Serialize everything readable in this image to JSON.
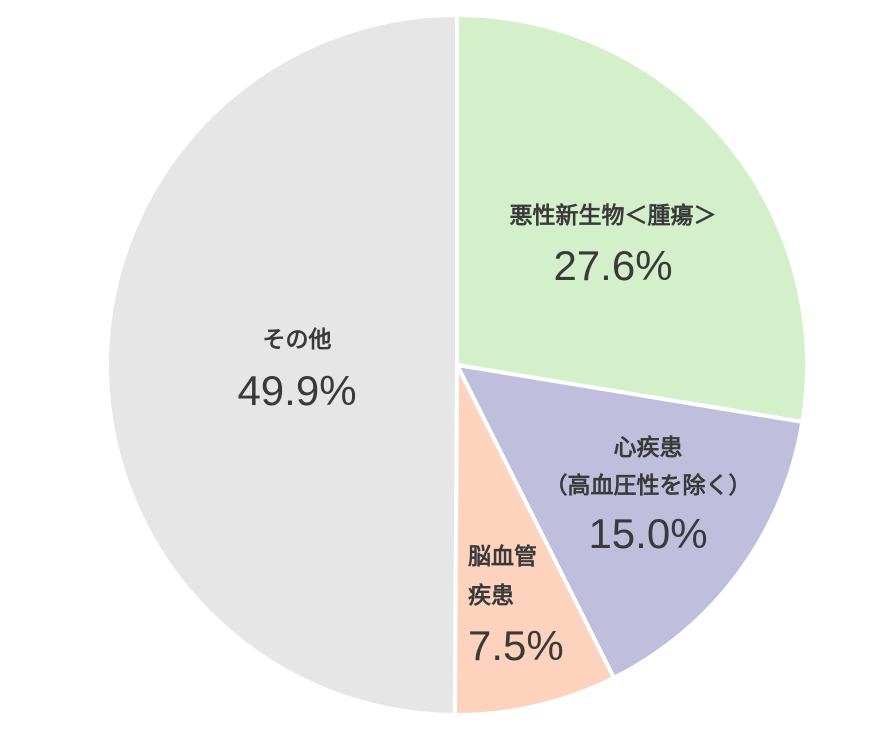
{
  "chart_data": {
    "type": "pie",
    "start": "12 o'clock",
    "direction": "clockwise",
    "slices": [
      {
        "label_lines": [
          "悪性新生物＜腫瘍＞"
        ],
        "value": 27.6,
        "display": "27.6%",
        "color": "#d3f0cb"
      },
      {
        "label_lines": [
          "心疾患",
          "（高血圧性を除く）"
        ],
        "value": 15.0,
        "display": "15.0%",
        "color": "#c0bedd"
      },
      {
        "label_lines": [
          "脳血管",
          "疾患"
        ],
        "value": 7.5,
        "display": "7.5%",
        "color": "#fdd3be"
      },
      {
        "label_lines": [
          "その他"
        ],
        "value": 49.9,
        "display": "49.9%",
        "color": "#e6e6e6"
      }
    ]
  }
}
